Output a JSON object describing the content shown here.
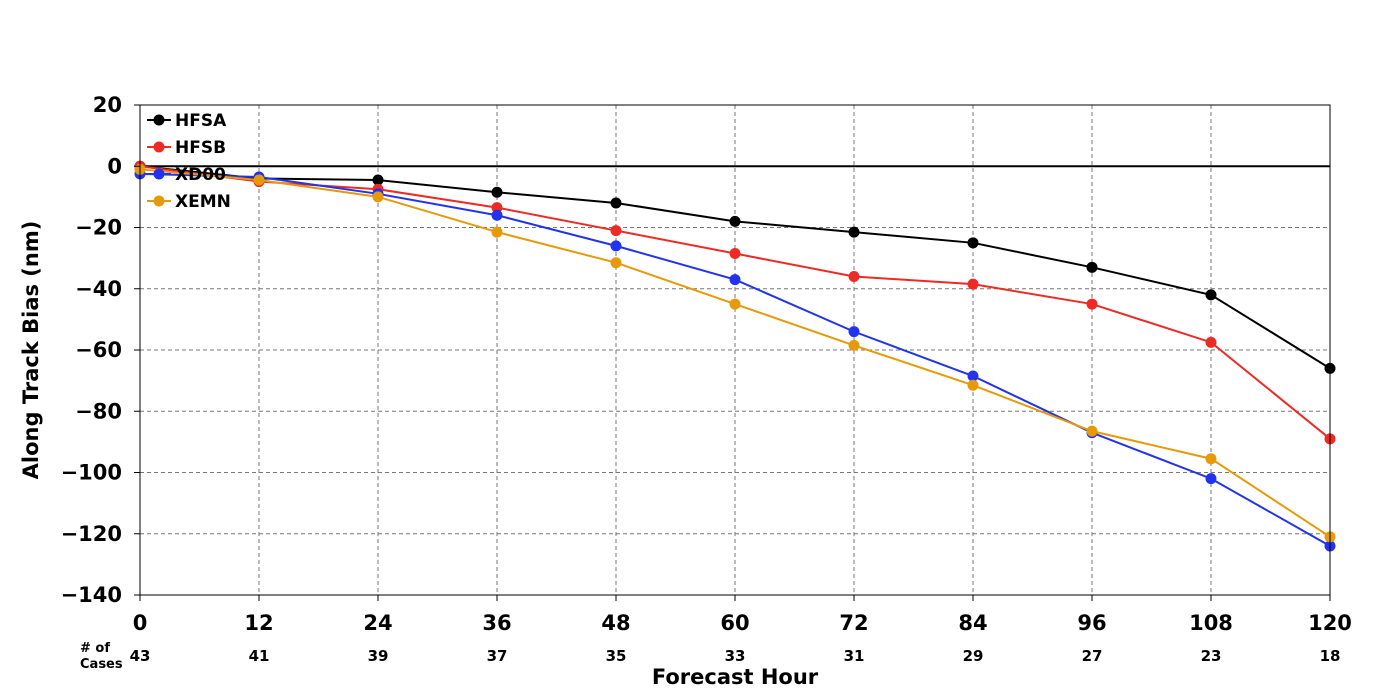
{
  "chart_data": {
    "type": "line",
    "title": "",
    "xlabel": "Forecast Hour",
    "ylabel": "Along Track Bias (nm)",
    "x": [
      0,
      12,
      24,
      36,
      48,
      60,
      72,
      84,
      96,
      108,
      120
    ],
    "x_tick_labels": [
      "0",
      "12",
      "24",
      "36",
      "48",
      "60",
      "72",
      "84",
      "96",
      "108",
      "120"
    ],
    "xlim": [
      0,
      120
    ],
    "ylim": [
      -140,
      20
    ],
    "y_ticks": [
      20,
      0,
      -20,
      -40,
      -60,
      -80,
      -100,
      -120,
      -140
    ],
    "y_tick_labels": [
      "20",
      "0",
      "−20",
      "−40",
      "−60",
      "−80",
      "−100",
      "−120",
      "−140"
    ],
    "grid": true,
    "zero_line": true,
    "legend_position": "top-left",
    "cases_header": [
      "# of",
      "Cases"
    ],
    "cases": [
      "43",
      "41",
      "39",
      "37",
      "35",
      "33",
      "31",
      "29",
      "27",
      "23",
      "18"
    ],
    "series": [
      {
        "name": "HFSA",
        "color": "#000000",
        "values": [
          0,
          -4,
          -4.5,
          -8.5,
          -12,
          -18,
          -21.5,
          -25,
          -33,
          -42,
          -66
        ]
      },
      {
        "name": "HFSB",
        "color": "#ee2a25",
        "values": [
          0,
          -5,
          -7.5,
          -13.5,
          -21,
          -28.5,
          -36,
          -38.5,
          -45,
          -57.5,
          -89
        ]
      },
      {
        "name": "XD00",
        "color": "#2233ee",
        "values": [
          -2.5,
          -3.5,
          -9,
          -16,
          -26,
          -37,
          -54,
          -68.5,
          -87,
          -102,
          -124
        ]
      },
      {
        "name": "XEMN",
        "color": "#e69a0a",
        "values": [
          -1,
          -4.5,
          -10,
          -21.5,
          -31.5,
          -45,
          -58.5,
          -71.5,
          -86.5,
          -95.5,
          -121
        ]
      }
    ]
  }
}
